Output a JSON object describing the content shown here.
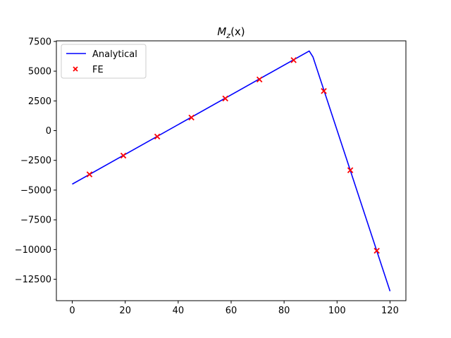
{
  "chart_data": {
    "type": "line",
    "title": "M_z(x)",
    "title_display": {
      "main": "M",
      "sub": "z",
      "rest": "(x)"
    },
    "xlabel": "",
    "ylabel": "",
    "xlim": [
      -6,
      126
    ],
    "ylim": [
      -14300,
      7550
    ],
    "x_ticks": [
      0,
      20,
      40,
      60,
      80,
      100,
      120
    ],
    "y_ticks": [
      7500,
      5000,
      2500,
      0,
      -2500,
      -5000,
      -7500,
      -10000,
      -12500
    ],
    "y_tick_labels": [
      "7500",
      "5000",
      "2500",
      "0",
      "−2500",
      "−5000",
      "−7500",
      "−10000",
      "−12500"
    ],
    "grid": false,
    "legend": {
      "placement": "top-left",
      "entries": [
        "Analytical",
        "FE"
      ]
    },
    "series": [
      {
        "name": "Analytical",
        "kind": "line",
        "color": "#0000ff",
        "points": [
          [
            0,
            -4500
          ],
          [
            89.5,
            6700
          ],
          [
            90.9,
            6200
          ],
          [
            120,
            -13500
          ]
        ]
      },
      {
        "name": "FE",
        "kind": "scatter",
        "marker": "x",
        "color": "#ff0000",
        "points": [
          [
            6.5,
            -3680
          ],
          [
            19.3,
            -2100
          ],
          [
            32.1,
            -500
          ],
          [
            45.0,
            1100
          ],
          [
            57.8,
            2700
          ],
          [
            70.7,
            4300
          ],
          [
            83.6,
            5930
          ],
          [
            95.0,
            3330
          ],
          [
            105.0,
            -3330
          ],
          [
            115.0,
            -10100
          ]
        ]
      }
    ]
  }
}
